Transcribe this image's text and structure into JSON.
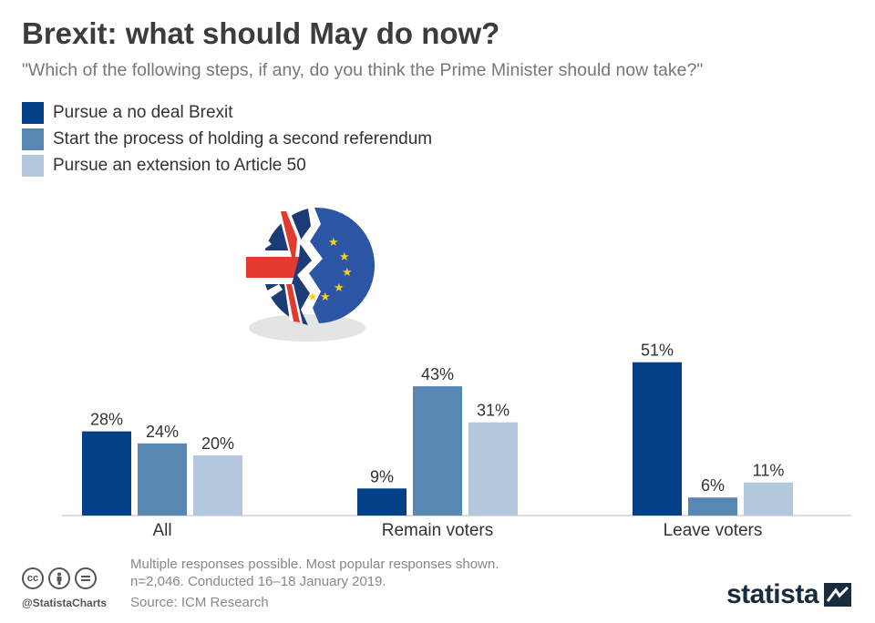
{
  "title": "Brexit: what should May do now?",
  "subtitle": "\"Which of the following steps, if any, do you think the Prime Minister should now take?\"",
  "colors": {
    "series1": "#034085",
    "series2": "#5887b4",
    "series3": "#b3c8dc",
    "axis": "#bbbbbb",
    "label": "#333333"
  },
  "chart_data": {
    "type": "bar",
    "categories": [
      "All",
      "Remain voters",
      "Leave voters"
    ],
    "series": [
      {
        "name": "Pursue a no deal Brexit",
        "values": [
          28,
          9,
          51
        ]
      },
      {
        "name": "Start the process of holding a second referendum",
        "values": [
          24,
          43,
          6
        ]
      },
      {
        "name": "Pursue an extension to Article 50",
        "values": [
          20,
          31,
          11
        ]
      }
    ],
    "unit": "%",
    "legend_position": "top-left",
    "grid": false
  },
  "footer": {
    "note_line1": "Multiple responses possible. Most popular responses shown.",
    "note_line2": "n=2,046. Conducted 16–18 January 2019.",
    "source": "Source: ICM Research",
    "handle": "@StatistaCharts",
    "brand": "statista"
  },
  "icons": {
    "illustration": "broken-uk-eu-flag-illustration",
    "license": [
      "cc-icon",
      "by-icon",
      "nd-icon"
    ]
  }
}
